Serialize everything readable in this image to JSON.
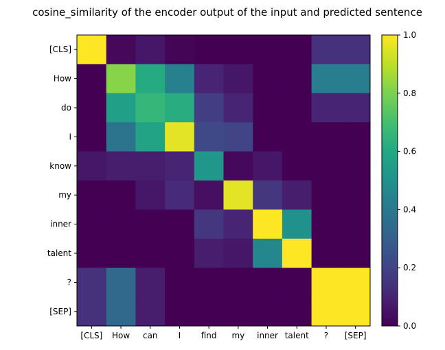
{
  "chart_data": {
    "type": "heatmap",
    "title": "cosine_similarity of the encoder output of the input and predicted sentence",
    "x_categories": [
      "[CLS]",
      "How",
      "can",
      "I",
      "find",
      "my",
      "inner",
      "talent",
      "?",
      "[SEP]"
    ],
    "y_categories": [
      "[CLS]",
      "How",
      "do",
      "I",
      "know",
      "my",
      "inner",
      "talent",
      "?",
      "[SEP]"
    ],
    "values": [
      [
        1.0,
        0.02,
        0.06,
        0.01,
        0.0,
        0.0,
        0.0,
        0.0,
        0.14,
        0.14
      ],
      [
        0.0,
        0.82,
        0.61,
        0.43,
        0.1,
        0.06,
        0.0,
        0.0,
        0.42,
        0.42
      ],
      [
        0.0,
        0.56,
        0.66,
        0.62,
        0.18,
        0.1,
        0.0,
        0.0,
        0.1,
        0.1
      ],
      [
        0.0,
        0.38,
        0.58,
        0.96,
        0.22,
        0.2,
        0.0,
        0.0,
        0.0,
        0.0
      ],
      [
        0.06,
        0.08,
        0.08,
        0.1,
        0.52,
        0.02,
        0.06,
        0.0,
        0.0,
        0.0
      ],
      [
        0.0,
        0.0,
        0.06,
        0.12,
        0.04,
        0.96,
        0.16,
        0.08,
        0.0,
        0.0
      ],
      [
        0.0,
        0.0,
        0.0,
        0.0,
        0.16,
        0.1,
        1.0,
        0.5,
        0.0,
        0.0
      ],
      [
        0.0,
        0.0,
        0.0,
        0.0,
        0.08,
        0.06,
        0.46,
        1.0,
        0.0,
        0.0
      ],
      [
        0.14,
        0.34,
        0.08,
        0.0,
        0.0,
        0.0,
        0.0,
        0.0,
        1.0,
        1.0
      ],
      [
        0.14,
        0.34,
        0.08,
        0.0,
        0.0,
        0.0,
        0.0,
        0.0,
        1.0,
        1.0
      ]
    ],
    "colormap": "viridis",
    "colorbar": {
      "range": [
        0.0,
        1.0
      ],
      "ticks": [
        0.0,
        0.2,
        0.4,
        0.6,
        0.8,
        1.0
      ],
      "tick_labels": [
        "0.0",
        "0.2",
        "0.4",
        "0.6",
        "0.8",
        "1.0"
      ]
    },
    "grid": false
  }
}
